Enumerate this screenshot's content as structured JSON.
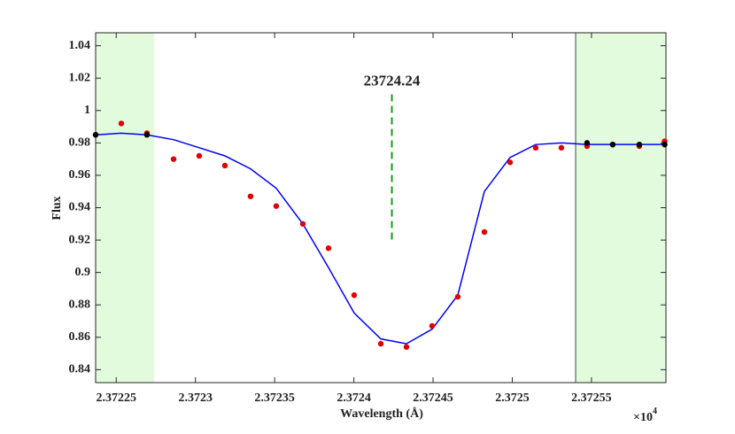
{
  "chart_data": {
    "type": "scatter-line",
    "xlabel": "Wavelength (Å)",
    "ylabel": "Flux",
    "x_scale_base": "×10",
    "x_scale_exponent": "4",
    "xlim": [
      2.372237,
      2.372597
    ],
    "ylim": [
      0.832,
      1.048
    ],
    "xticks": [
      2.37225,
      2.3723,
      2.37235,
      2.3724,
      2.37245,
      2.3725,
      2.37255
    ],
    "yticks": [
      0.84,
      0.86,
      0.88,
      0.9,
      0.92,
      0.94,
      0.96,
      0.98,
      1,
      1.02,
      1.04
    ],
    "shaded_regions": [
      {
        "x": [
          2.372237,
          2.372274
        ],
        "color": "#e2fbdd",
        "left_border": false
      },
      {
        "x": [
          2.37254,
          2.372597
        ],
        "color": "#e2fbdd",
        "left_border": true
      }
    ],
    "annotation": {
      "text": "23724.24",
      "x": 2.372424,
      "y": [
        1.01,
        0.92
      ],
      "color": "#1a9a1a"
    },
    "series": [
      {
        "style": "line",
        "color": "#0000ff",
        "x": [
          2.372237,
          2.3722532,
          2.3722694,
          2.3722862,
          2.3723024,
          2.3723186,
          2.3723348,
          2.372351,
          2.3723678,
          2.372384,
          2.3724002,
          2.372417,
          2.3724332,
          2.3724494,
          2.3724656,
          2.3724824,
          2.3724986,
          2.3725148,
          2.372531,
          2.3725472,
          2.3725634,
          2.3725802,
          2.3725962
        ],
        "values": [
          0.985,
          0.986,
          0.985,
          0.982,
          0.977,
          0.972,
          0.964,
          0.952,
          0.93,
          0.903,
          0.875,
          0.859,
          0.856,
          0.865,
          0.886,
          0.95,
          0.971,
          0.979,
          0.98,
          0.979,
          0.979,
          0.979,
          0.979
        ]
      },
      {
        "style": "points",
        "color": "#e00000",
        "x": [
          2.372237,
          2.3722532,
          2.3722694,
          2.3722862,
          2.3723024,
          2.3723186,
          2.3723348,
          2.372351,
          2.3723678,
          2.372384,
          2.3724002,
          2.372417,
          2.3724332,
          2.3724494,
          2.3724656,
          2.3724824,
          2.3724986,
          2.3725148,
          2.372531,
          2.3725472,
          2.3725634,
          2.3725802,
          2.3725962
        ],
        "values": [
          0.985,
          0.992,
          0.986,
          0.97,
          0.972,
          0.966,
          0.947,
          0.941,
          0.93,
          0.915,
          0.886,
          0.856,
          0.854,
          0.867,
          0.885,
          0.925,
          0.968,
          0.977,
          0.977,
          0.978,
          0.979,
          0.978,
          0.981
        ]
      },
      {
        "style": "points",
        "color": "#000000",
        "x": [
          2.372237,
          2.3722694,
          2.3725472,
          2.3725634,
          2.3725802,
          2.3725962
        ],
        "values": [
          0.985,
          0.985,
          0.98,
          0.979,
          0.979,
          0.979
        ]
      }
    ]
  }
}
